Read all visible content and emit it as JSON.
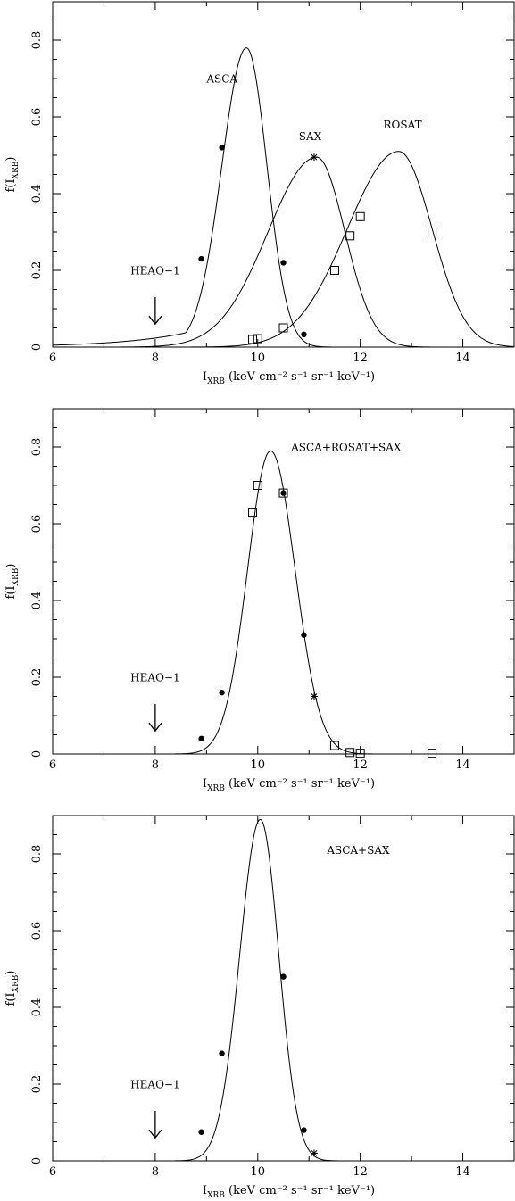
{
  "chart_data": [
    {
      "type": "line",
      "xlabel_main": "I",
      "xlabel_sub": "XRB",
      "xlabel_units": " (keV cm⁻² s⁻¹ sr⁻¹ keV⁻¹)",
      "ylabel_main": "f(I",
      "ylabel_sub": "XRB",
      "ylabel_close": ")",
      "xlim": [
        6,
        15
      ],
      "ylim": [
        0,
        0.9
      ],
      "xticks": [
        6,
        8,
        10,
        12,
        14
      ],
      "yticks": [
        0,
        0.2,
        0.4,
        0.6,
        0.8
      ],
      "ytick_labels": [
        "0",
        "0.2",
        "0.4",
        "0.6",
        "0.8"
      ],
      "arrow": {
        "label": "HEAO−1",
        "x": 8,
        "y_top": 0.13,
        "y_bottom": 0.06,
        "label_y": 0.19
      },
      "series": [
        {
          "name": "ASCA",
          "label_at": [
            9.0,
            0.69
          ],
          "peak": 9.78,
          "amp": 0.78,
          "sigma_left": 0.48,
          "sigma_right": 0.4,
          "tail": 0.025,
          "tail_width": 1.3,
          "points": [
            [
              8.9,
              0.23
            ],
            [
              9.3,
              0.52
            ],
            [
              10.5,
              0.22
            ],
            [
              10.9,
              0.033
            ]
          ],
          "marker": "dot"
        },
        {
          "name": "SAX",
          "label_at": [
            10.8,
            0.54
          ],
          "peak": 11.15,
          "amp": 0.495,
          "sigma_left": 0.95,
          "sigma_right": 0.55,
          "points": [
            [
              11.1,
              0.495
            ]
          ],
          "marker": "star"
        },
        {
          "name": "ROSAT",
          "label_at": [
            12.45,
            0.57
          ],
          "peak": 12.75,
          "amp": 0.51,
          "sigma_left": 1.0,
          "sigma_right": 0.65,
          "points": [
            [
              9.9,
              0.02
            ],
            [
              10.0,
              0.022
            ],
            [
              10.5,
              0.05
            ],
            [
              11.5,
              0.2
            ],
            [
              11.8,
              0.29
            ],
            [
              12.0,
              0.34
            ],
            [
              13.4,
              0.3
            ]
          ],
          "marker": "square"
        }
      ]
    },
    {
      "type": "line",
      "xlabel_main": "I",
      "xlabel_sub": "XRB",
      "xlabel_units": " (keV cm⁻² s⁻¹ sr⁻¹ keV⁻¹)",
      "ylabel_main": "f(I",
      "ylabel_sub": "XRB",
      "ylabel_close": ")",
      "xlim": [
        6,
        15
      ],
      "ylim": [
        0,
        0.9
      ],
      "xticks": [
        6,
        8,
        10,
        12,
        14
      ],
      "yticks": [
        0,
        0.2,
        0.4,
        0.6,
        0.8
      ],
      "ytick_labels": [
        "0",
        "0.2",
        "0.4",
        "0.6",
        "0.8"
      ],
      "arrow": {
        "label": "HEAO−1",
        "x": 8,
        "y_top": 0.13,
        "y_bottom": 0.06,
        "label_y": 0.19
      },
      "annotation": {
        "text": "ASCA+ROSAT+SAX",
        "at": [
          10.65,
          0.79
        ]
      },
      "series": [
        {
          "name": "",
          "peak": 10.25,
          "amp": 0.79,
          "sigma_left": 0.45,
          "sigma_right": 0.48,
          "points_dot": [
            [
              8.9,
              0.04
            ],
            [
              9.3,
              0.16
            ],
            [
              10.5,
              0.68
            ],
            [
              10.9,
              0.31
            ]
          ],
          "points_star": [
            [
              11.1,
              0.15
            ]
          ],
          "points_square": [
            [
              9.9,
              0.63
            ],
            [
              10.0,
              0.7
            ],
            [
              10.5,
              0.68
            ],
            [
              11.5,
              0.022
            ],
            [
              11.8,
              0.004
            ],
            [
              12.0,
              0.002
            ],
            [
              13.4,
              0.002
            ]
          ]
        }
      ]
    },
    {
      "type": "line",
      "xlabel_main": "I",
      "xlabel_sub": "XRB",
      "xlabel_units": " (keV cm⁻² s⁻¹ sr⁻¹ keV⁻¹)",
      "ylabel_main": "f(I",
      "ylabel_sub": "XRB",
      "ylabel_close": ")",
      "xlim": [
        6,
        15
      ],
      "ylim": [
        0,
        0.9
      ],
      "xticks": [
        6,
        8,
        10,
        12,
        14
      ],
      "yticks": [
        0,
        0.2,
        0.4,
        0.6,
        0.8
      ],
      "ytick_labels": [
        "0",
        "0.2",
        "0.4",
        "0.6",
        "0.8"
      ],
      "arrow": {
        "label": "HEAO−1",
        "x": 8,
        "y_top": 0.13,
        "y_bottom": 0.06,
        "label_y": 0.19
      },
      "annotation": {
        "text": "ASCA+SAX",
        "at": [
          11.35,
          0.8
        ]
      },
      "series": [
        {
          "name": "",
          "peak": 10.05,
          "amp": 0.89,
          "sigma_left": 0.4,
          "sigma_right": 0.36,
          "points_dot": [
            [
              8.9,
              0.075
            ],
            [
              9.3,
              0.28
            ],
            [
              10.5,
              0.48
            ],
            [
              10.9,
              0.08
            ]
          ],
          "points_star": [
            [
              11.1,
              0.02
            ]
          ],
          "points_square": []
        }
      ]
    }
  ]
}
